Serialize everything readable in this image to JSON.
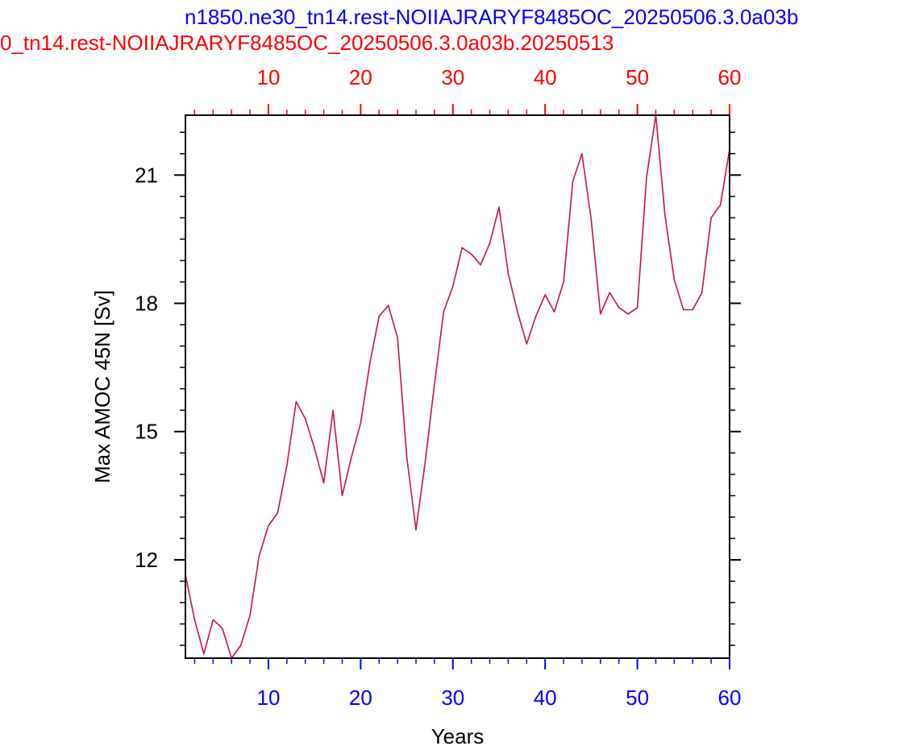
{
  "titles": {
    "blue": "n1850.ne30_tn14.rest-NOIIAJRARYF8485OC_20250506.3.0a03b",
    "red": "0_tn14.rest-NOIIAJRARYF8485OC_20250506.3.0a03b.20250513"
  },
  "colors": {
    "blue": "#0000ff",
    "red": "#ff0000",
    "series_line": "#cc1144",
    "axis": "#000000"
  },
  "chart_data": {
    "type": "line",
    "xlabel": "Years",
    "ylabel": "Max AMOC 45N [Sv]",
    "xlim": [
      1,
      60
    ],
    "ylim": [
      9.7,
      22.4
    ],
    "x_ticks_major": [
      10,
      20,
      30,
      40,
      50,
      60
    ],
    "x_ticks_minor": [
      2,
      4,
      6,
      8,
      12,
      14,
      16,
      18,
      22,
      24,
      26,
      28,
      32,
      34,
      36,
      38,
      42,
      44,
      46,
      48,
      52,
      54,
      56,
      58
    ],
    "y_ticks_major": [
      12,
      15,
      18,
      21
    ],
    "y_ticks_minor": [
      10,
      10.5,
      11,
      11.5,
      12.5,
      13,
      13.5,
      14,
      14.5,
      15.5,
      16,
      16.5,
      17,
      17.5,
      18.5,
      19,
      19.5,
      20,
      20.5,
      21.5,
      22
    ],
    "bottom_axis_color": "blue",
    "top_axis_color": "red",
    "grid": false,
    "series": [
      {
        "color": "#cc1144",
        "x": [
          1,
          2,
          3,
          4,
          5,
          6,
          7,
          8,
          9,
          10,
          11,
          12,
          13,
          14,
          15,
          16,
          17,
          18,
          19,
          20,
          21,
          22,
          23,
          24,
          25,
          26,
          27,
          28,
          29,
          30,
          31,
          32,
          33,
          34,
          35,
          36,
          37,
          38,
          39,
          40,
          41,
          42,
          43,
          44,
          45,
          46,
          47,
          48,
          49,
          50,
          51,
          52,
          53,
          54,
          55,
          56,
          57,
          58,
          59,
          60
        ],
        "y": [
          11.65,
          10.6,
          9.8,
          10.6,
          10.4,
          9.7,
          10.0,
          10.7,
          12.1,
          12.8,
          13.1,
          14.2,
          15.7,
          15.3,
          14.6,
          13.8,
          15.5,
          13.5,
          14.4,
          15.2,
          16.6,
          17.7,
          17.95,
          17.2,
          14.4,
          12.7,
          14.3,
          16.1,
          17.8,
          18.4,
          19.3,
          19.15,
          18.9,
          19.4,
          20.25,
          18.7,
          17.8,
          17.05,
          17.7,
          18.2,
          17.8,
          18.5,
          20.85,
          21.5,
          19.95,
          17.75,
          18.25,
          17.9,
          17.75,
          17.9,
          20.95,
          22.4,
          20.05,
          18.55,
          17.85,
          17.85,
          18.25,
          20.0,
          20.3,
          21.6
        ]
      }
    ]
  }
}
